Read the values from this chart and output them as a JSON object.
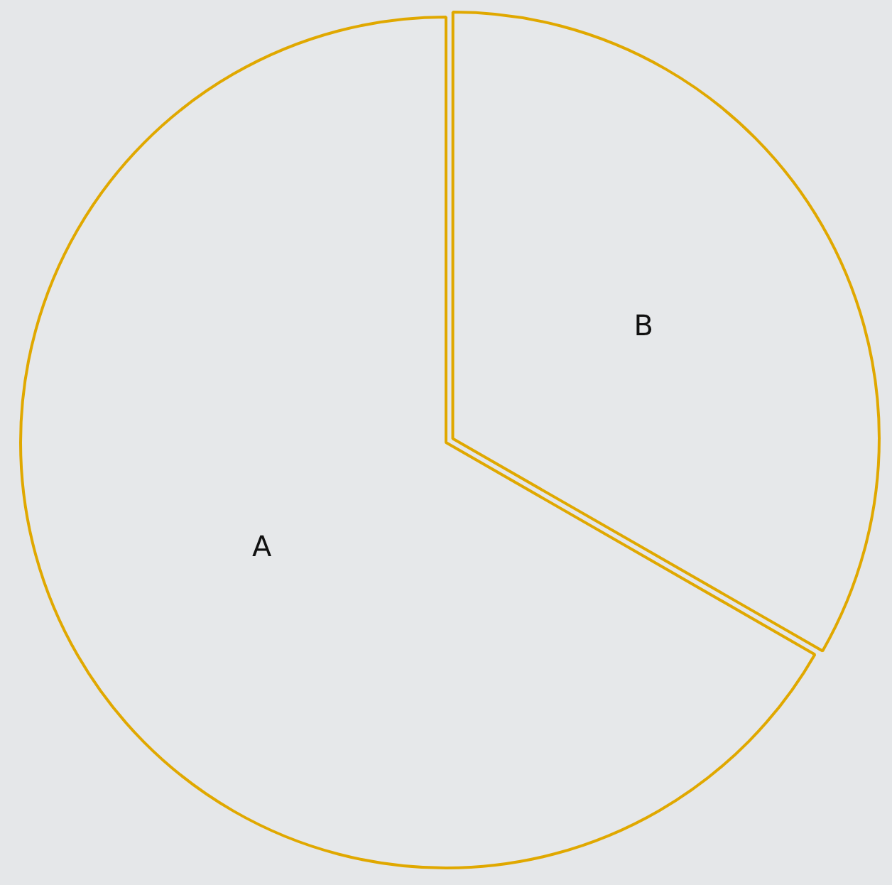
{
  "chart_data": {
    "type": "pie",
    "categories": [
      "B",
      "A"
    ],
    "values": [
      33.3,
      66.7
    ],
    "colors": [
      "#e0a800",
      "#e0a800"
    ]
  }
}
